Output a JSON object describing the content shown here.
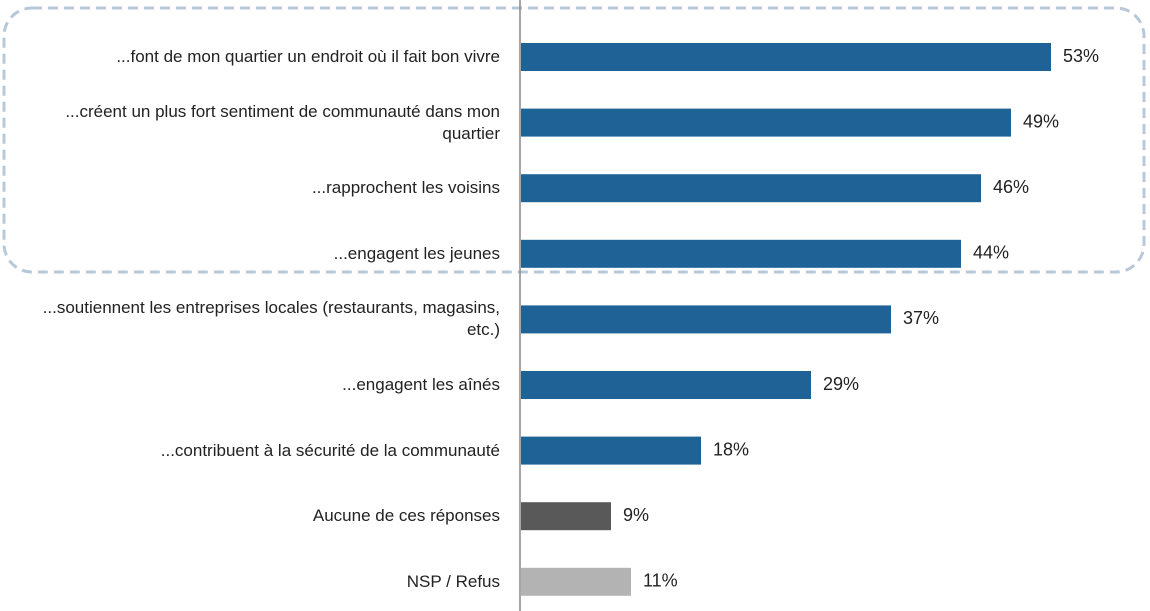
{
  "chart_data": {
    "type": "bar",
    "orientation": "horizontal",
    "categories": [
      "...font de mon quartier un endroit où il fait bon vivre",
      "...créent un plus fort sentiment de communauté dans mon quartier",
      "...rapprochent les voisins",
      "...engagent les jeunes",
      "...soutiennent les entreprises locales (restaurants, magasins, etc.)",
      "...engagent les aînés",
      "...contribuent à la sécurité de la communauté",
      "Aucune de ces réponses",
      "NSP / Refus"
    ],
    "values": [
      53,
      49,
      46,
      44,
      37,
      29,
      18,
      9,
      11
    ],
    "value_labels": [
      "53%",
      "49%",
      "46%",
      "44%",
      "37%",
      "29%",
      "18%",
      "9%",
      "11%"
    ],
    "colors": [
      "#1f6396",
      "#1f6396",
      "#1f6396",
      "#1f6396",
      "#1f6396",
      "#1f6396",
      "#1f6396",
      "#595959",
      "#b3b3b3"
    ]
  }
}
